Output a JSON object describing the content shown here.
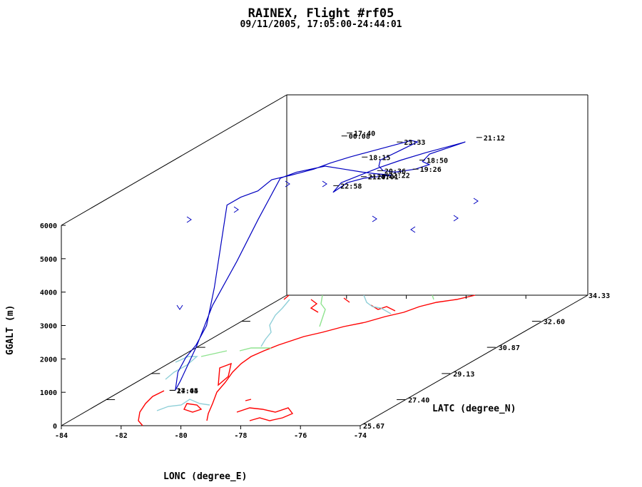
{
  "chart_data": {
    "type": "line",
    "title": "RAINEX, Flight #rf05",
    "subtitle": "09/11/2005, 17:05:00-24:44:01",
    "xlabel": "LONC (degree_E)",
    "ylabel": "LATC (degree_N)",
    "zlabel": "GGALT (m)",
    "xlim": [
      -84,
      -74
    ],
    "ylim": [
      25.67,
      34.33
    ],
    "zlim": [
      0,
      6000
    ],
    "x_ticks": [
      "-84",
      "-82",
      "-80",
      "-78",
      "-76",
      "-74"
    ],
    "y_ticks": [
      "25.67",
      "27.40",
      "29.13",
      "30.87",
      "32.60",
      "34.33"
    ],
    "z_ticks": [
      "0",
      "1000",
      "2000",
      "3000",
      "4000",
      "5000",
      "6000"
    ],
    "track_color": "#0000c0",
    "coast_color": "#ff0000",
    "river_color": "#8fcfd8",
    "border_color": "#8fe38f",
    "time_labels": [
      {
        "text": "17:40",
        "lon": -79.6,
        "lat": 31.8,
        "alt": 6000
      },
      {
        "text": "00:08",
        "lon": -79.6,
        "lat": 31.6,
        "alt": 6000
      },
      {
        "text": "23:33",
        "lon": -77.4,
        "lat": 31.2,
        "alt": 6000
      },
      {
        "text": "18:15",
        "lon": -77.7,
        "lat": 30.2,
        "alt": 6000
      },
      {
        "text": "21:12",
        "lon": -75.0,
        "lat": 31.5,
        "alt": 6000
      },
      {
        "text": "18:50",
        "lon": -75.6,
        "lat": 30.0,
        "alt": 6000
      },
      {
        "text": "20:36",
        "lon": -76.4,
        "lat": 29.3,
        "alt": 6000
      },
      {
        "text": "19:26",
        "lon": -75.3,
        "lat": 29.4,
        "alt": 6000
      },
      {
        "text": "22:22",
        "lon": -76.0,
        "lat": 29.0,
        "alt": 6000
      },
      {
        "text": "21:47",
        "lon": -76.6,
        "lat": 28.9,
        "alt": 6000
      },
      {
        "text": "20:01",
        "lon": -76.3,
        "lat": 28.9,
        "alt": 6000
      },
      {
        "text": "22:58",
        "lon": -77.0,
        "lat": 28.3,
        "alt": 6000
      },
      {
        "text": "17:05",
        "lon": -80.3,
        "lat": 25.8,
        "alt": 1000
      },
      {
        "text": "24:44",
        "lon": -80.3,
        "lat": 25.8,
        "alt": 1000
      }
    ]
  }
}
